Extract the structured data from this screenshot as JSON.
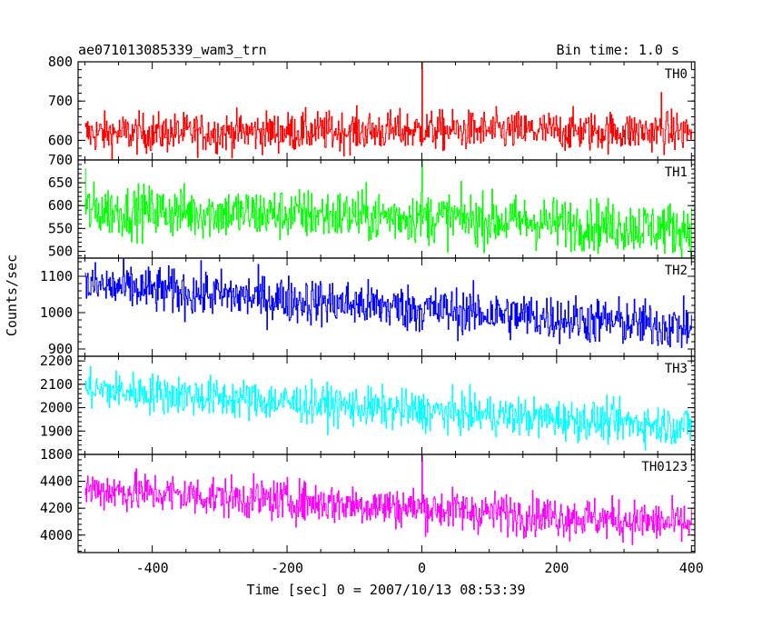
{
  "chart_data": {
    "type": "line",
    "title": "ae071013085339_wam3_trn",
    "subtitle": "Bin time: 1.0 s",
    "xlabel": "Time [sec] 0 = 2007/10/13 08:53:39",
    "ylabel": "Counts/sec",
    "xlim": [
      -500,
      400
    ],
    "xlim_display": [
      -510,
      405
    ],
    "xticks": [
      -400,
      -200,
      0,
      200,
      400
    ],
    "bin_time_s": 1.0,
    "grid": false,
    "legend": "none",
    "panels": [
      {
        "name": "TH0",
        "color": "#ff0000",
        "ylim": [
          550,
          800
        ],
        "yticks": [
          600,
          700,
          800
        ],
        "trend": {
          "x": [
            -500,
            0,
            400
          ],
          "y": [
            617,
            625,
            622
          ]
        },
        "noise_sd": 25,
        "spikes": [
          {
            "x": 0,
            "y": 800
          },
          {
            "x": 355,
            "y": 722
          }
        ]
      },
      {
        "name": "TH1",
        "color": "#00ff00",
        "ylim": [
          485,
          700
        ],
        "yticks": [
          500,
          550,
          600,
          650,
          700
        ],
        "trend": {
          "x": [
            -500,
            0,
            400
          ],
          "y": [
            590,
            575,
            548
          ]
        },
        "noise_sd": 28,
        "spikes": [
          {
            "x": 0,
            "y": 700
          },
          {
            "x": -500,
            "y": 680
          }
        ]
      },
      {
        "name": "TH2",
        "color": "#0000ff",
        "ylim": [
          880,
          1150
        ],
        "yticks": [
          900,
          1000,
          1100
        ],
        "trend": {
          "x": [
            -500,
            0,
            400
          ],
          "y": [
            1075,
            1010,
            960
          ]
        },
        "noise_sd": 32,
        "spikes": []
      },
      {
        "name": "TH3",
        "color": "#00ffff",
        "ylim": [
          1800,
          2220
        ],
        "yticks": [
          1800,
          1900,
          2000,
          2100,
          2200
        ],
        "trend": {
          "x": [
            -500,
            0,
            400
          ],
          "y": [
            2080,
            1985,
            1920
          ]
        },
        "noise_sd": 42,
        "spikes": []
      },
      {
        "name": "TH0123",
        "color": "#ff00ff",
        "ylim": [
          3870,
          4600
        ],
        "yticks": [
          4000,
          4200,
          4400
        ],
        "trend": {
          "x": [
            -500,
            0,
            400
          ],
          "y": [
            4340,
            4200,
            4080
          ]
        },
        "noise_sd": 75,
        "spikes": [
          {
            "x": 0,
            "y": 4590
          }
        ]
      }
    ]
  }
}
